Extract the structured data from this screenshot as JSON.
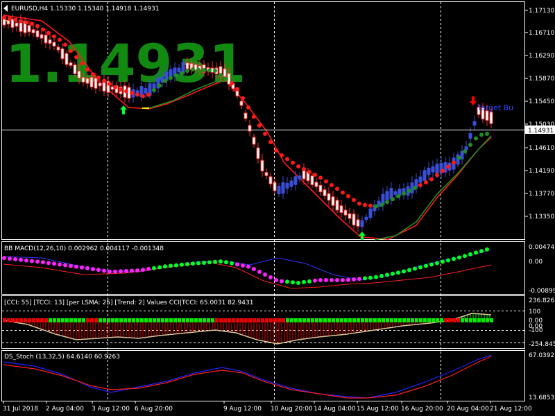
{
  "colors": {
    "background": "#000000",
    "grid": "#ffffff",
    "bull_candle": "#3a4fd8",
    "bear_candle": "#ff3030",
    "ma_fast": "#ff1a1a",
    "ma_slow": "#1f8f1f",
    "macd_up_dot": "#00ff22",
    "macd_down_dot": "#ff22ff",
    "macd_line": "#3333ff",
    "macd_signal": "#ff2020",
    "cci_green": "#00ee00",
    "cci_red": "#ee0000",
    "cci_line": "#d8c89a",
    "stoch_blue": "#2222ff",
    "stoch_red": "#ff2020",
    "big_price": "#128a12",
    "up_arrow": "#00ff33",
    "down_arrow": "#ff0000"
  },
  "main": {
    "header": "EURUSD,H4  1.15330 1.15340 1.14918 1.14931",
    "big_price": "1.14931",
    "current_price_label": "1.14931",
    "target_label": "Target Bu",
    "y_ticks": [
      "1.17130",
      "1.16710",
      "1.16290",
      "1.15870",
      "1.15450",
      "1.15030",
      "1.14610",
      "1.14190",
      "1.13770",
      "1.13350"
    ]
  },
  "macd": {
    "header": "BB MACD(12,26,10) 0.002962 0.004117 -0.001348",
    "y_ticks": [
      "0.004741",
      "0.00",
      "-0.008991"
    ]
  },
  "cci": {
    "header": "[CCI: 55] [TCCI: 13] [per LSMA: 25] [Trend: 2] Values CCI|TCCI: 65.0031 82.9431",
    "y_ticks": [
      "236.8263",
      "100",
      "0.00",
      "0.00",
      "-100",
      "-254.8453"
    ]
  },
  "stoch": {
    "header": "DS_Stoch (13,32,5) 64.6140 60.9263",
    "y_ticks": [
      "67.0392",
      "13.6853"
    ]
  },
  "time_axis": {
    "labels": [
      "31 Jul 2018",
      "2 Aug 04:00",
      "3 Aug 12:00",
      "6 Aug 20:00",
      "9 Aug 12:00",
      "10 Aug 20:00",
      "14 Aug 04:00",
      "15 Aug 12:00",
      "16 Aug 20:00",
      "20 Aug 04:00",
      "21 Aug 12:00"
    ]
  },
  "chart_data": {
    "type": "line",
    "title": "EURUSD,H4",
    "x": [
      "31 Jul 2018",
      "2 Aug 04:00",
      "3 Aug 12:00",
      "6 Aug 20:00",
      "9 Aug 12:00",
      "10 Aug 20:00",
      "14 Aug 04:00",
      "15 Aug 12:00",
      "16 Aug 20:00",
      "20 Aug 04:00",
      "21 Aug 12:00"
    ],
    "ylim": [
      1.13,
      1.175
    ],
    "series": [
      {
        "name": "EURUSD",
        "values": [
          1.17,
          1.164,
          1.1555,
          1.159,
          1.1585,
          1.138,
          1.135,
          1.134,
          1.1395,
          1.144,
          1.1493
        ]
      }
    ]
  }
}
